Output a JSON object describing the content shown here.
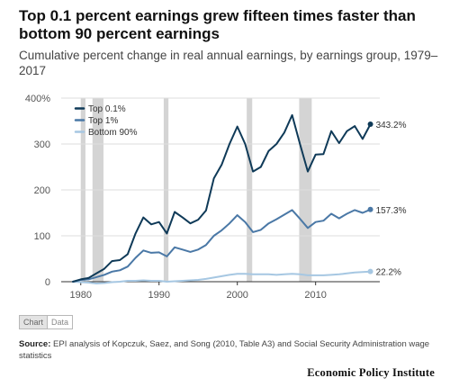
{
  "header": {
    "title": "Top 0.1 percent earnings grew fifteen times faster than bottom 90 percent earnings",
    "subtitle": "Cumulative percent change in real annual earnings, by earnings group, 1979–2017"
  },
  "chart_data": {
    "type": "line",
    "title": "Top 0.1 percent earnings grew fifteen times faster than bottom 90 percent earnings",
    "subtitle": "Cumulative percent change in real annual earnings, by earnings group, 1979–2017",
    "x": [
      1979,
      1980,
      1981,
      1982,
      1983,
      1984,
      1985,
      1986,
      1987,
      1988,
      1989,
      1990,
      1991,
      1992,
      1993,
      1994,
      1995,
      1996,
      1997,
      1998,
      1999,
      2000,
      2001,
      2002,
      2003,
      2004,
      2005,
      2006,
      2007,
      2008,
      2009,
      2010,
      2011,
      2012,
      2013,
      2014,
      2015,
      2016,
      2017
    ],
    "series": [
      {
        "name": "Top 0.1%",
        "color": "#0f3a58",
        "end_label": "343.2%",
        "values": [
          0,
          5,
          8,
          18,
          28,
          45,
          47,
          60,
          105,
          140,
          125,
          130,
          105,
          152,
          140,
          127,
          135,
          155,
          225,
          255,
          300,
          338,
          300,
          240,
          250,
          285,
          300,
          325,
          363,
          300,
          240,
          277,
          278,
          328,
          302,
          328,
          339,
          311,
          343.2
        ]
      },
      {
        "name": "Top 1%",
        "color": "#4a78a6",
        "end_label": "157.3%",
        "values": [
          0,
          4,
          5,
          10,
          15,
          22,
          25,
          33,
          52,
          68,
          63,
          64,
          55,
          75,
          70,
          65,
          70,
          80,
          100,
          112,
          127,
          145,
          130,
          108,
          113,
          127,
          136,
          146,
          156,
          137,
          117,
          130,
          133,
          148,
          138,
          148,
          156,
          150,
          157.3
        ]
      },
      {
        "name": "Bottom 90%",
        "color": "#a6c7e2",
        "end_label": "22.2%",
        "values": [
          0,
          -1,
          -2,
          -4,
          -3,
          -1,
          0,
          2,
          2,
          3,
          2,
          2,
          0,
          1,
          2,
          3,
          4,
          6,
          9,
          12,
          15,
          17,
          17,
          16,
          16,
          16,
          15,
          16,
          17,
          16,
          14,
          14,
          14,
          15,
          16,
          18,
          20,
          21,
          22.2
        ]
      }
    ],
    "recessions": [
      [
        1980,
        1980.6
      ],
      [
        1981.5,
        1982.9
      ],
      [
        1990.6,
        1991.2
      ],
      [
        2001.2,
        2001.9
      ],
      [
        2007.9,
        2009.5
      ]
    ],
    "xlim": [
      1977.5,
      2018.2
    ],
    "ylim": [
      0,
      400
    ],
    "xticks": [
      1980,
      1990,
      2000,
      2010
    ],
    "yticks": [
      0,
      100,
      200,
      300,
      400
    ],
    "ytick_labels": [
      "0",
      "100",
      "200",
      "300",
      "400%"
    ],
    "xlabel": "",
    "ylabel": "",
    "grid": "horizontal",
    "legend": "top-left",
    "recession_color": "#d4d4d4"
  },
  "toggle": {
    "chart_label": "Chart",
    "data_label": "Data"
  },
  "footer": {
    "source_label": "Source:",
    "source_text": "EPI analysis of Kopczuk, Saez, and Song (2010, Table A3) and Social Security Administration wage statistics",
    "brand": "Economic Policy Institute"
  }
}
